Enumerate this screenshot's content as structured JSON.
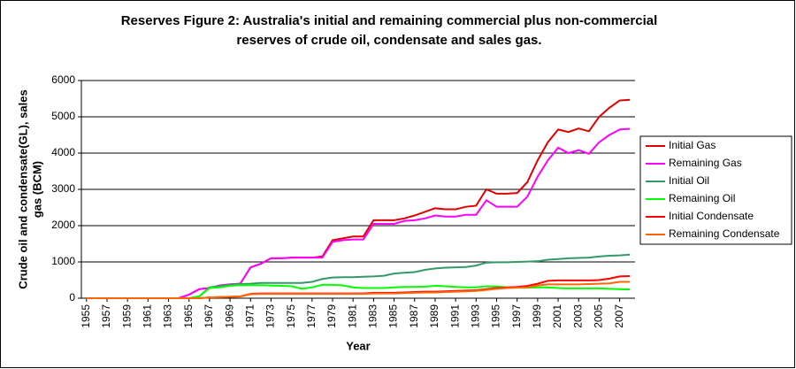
{
  "chart_data": {
    "type": "line",
    "title": [
      "Reserves Figure 2: Australia's initial and remaining commercial plus non-commercial",
      "reserves of crude oil, condensate and sales gas."
    ],
    "x_label": "Year",
    "y_label": [
      "Crude oil and condensate(GL), sales",
      "gas (BCM)"
    ],
    "x": [
      1955,
      1956,
      1957,
      1958,
      1959,
      1960,
      1961,
      1962,
      1963,
      1964,
      1965,
      1966,
      1967,
      1968,
      1969,
      1970,
      1971,
      1972,
      1973,
      1974,
      1975,
      1976,
      1977,
      1978,
      1979,
      1980,
      1981,
      1982,
      1983,
      1984,
      1985,
      1986,
      1987,
      1988,
      1989,
      1990,
      1991,
      1992,
      1993,
      1994,
      1995,
      1996,
      1997,
      1998,
      1999,
      2000,
      2001,
      2002,
      2003,
      2004,
      2005,
      2006,
      2007,
      2008
    ],
    "xlim": [
      1954.5,
      2008.5
    ],
    "xticks": [
      1955,
      1957,
      1959,
      1961,
      1963,
      1965,
      1967,
      1969,
      1971,
      1973,
      1975,
      1977,
      1979,
      1981,
      1983,
      1985,
      1987,
      1989,
      1991,
      1993,
      1995,
      1997,
      1999,
      2001,
      2003,
      2005,
      2007
    ],
    "ylim": [
      0,
      6000
    ],
    "yticks": [
      0,
      1000,
      2000,
      3000,
      4000,
      5000,
      6000
    ],
    "grid": true,
    "legend": "right",
    "series": [
      {
        "name": "Initial Gas",
        "color": "#e00000",
        "values": [
          0,
          0,
          0,
          0,
          0,
          0,
          0,
          0,
          0,
          0,
          100,
          250,
          280,
          350,
          380,
          400,
          850,
          950,
          1100,
          1100,
          1120,
          1120,
          1120,
          1150,
          1600,
          1650,
          1700,
          1700,
          2150,
          2150,
          2150,
          2200,
          2280,
          2380,
          2480,
          2450,
          2450,
          2520,
          2550,
          3000,
          2880,
          2880,
          2900,
          3200,
          3800,
          4300,
          4650,
          4580,
          4680,
          4600,
          5000,
          5250,
          5450,
          5470
        ]
      },
      {
        "name": "Remaining Gas",
        "color": "#ff00ff",
        "values": [
          0,
          0,
          0,
          0,
          0,
          0,
          0,
          0,
          0,
          0,
          100,
          250,
          280,
          350,
          380,
          400,
          850,
          950,
          1100,
          1100,
          1120,
          1120,
          1120,
          1120,
          1550,
          1600,
          1620,
          1620,
          2050,
          2050,
          2050,
          2130,
          2150,
          2200,
          2280,
          2250,
          2250,
          2300,
          2300,
          2700,
          2520,
          2520,
          2520,
          2800,
          3350,
          3800,
          4150,
          4000,
          4080,
          3980,
          4300,
          4500,
          4650,
          4670
        ]
      },
      {
        "name": "Initial Oil",
        "color": "#339966",
        "values": [
          0,
          0,
          0,
          0,
          0,
          0,
          0,
          0,
          0,
          0,
          0,
          50,
          300,
          330,
          370,
          390,
          400,
          420,
          420,
          420,
          420,
          420,
          450,
          530,
          570,
          580,
          580,
          590,
          600,
          620,
          680,
          700,
          720,
          780,
          820,
          840,
          850,
          860,
          900,
          980,
          990,
          990,
          1000,
          1010,
          1020,
          1060,
          1080,
          1100,
          1110,
          1120,
          1150,
          1170,
          1180,
          1200
        ]
      },
      {
        "name": "Remaining Oil",
        "color": "#00ff00",
        "values": [
          0,
          0,
          0,
          0,
          0,
          0,
          0,
          0,
          0,
          0,
          0,
          50,
          280,
          300,
          340,
          360,
          360,
          360,
          350,
          340,
          330,
          260,
          300,
          370,
          370,
          350,
          300,
          280,
          280,
          280,
          300,
          310,
          310,
          320,
          340,
          330,
          310,
          300,
          300,
          330,
          320,
          300,
          300,
          290,
          300,
          300,
          280,
          270,
          270,
          270,
          270,
          260,
          250,
          240
        ]
      },
      {
        "name": "Initial Condensate",
        "color": "#ff0000",
        "values": [
          0,
          0,
          0,
          0,
          0,
          0,
          0,
          0,
          0,
          0,
          0,
          0,
          20,
          30,
          40,
          50,
          120,
          130,
          130,
          130,
          130,
          130,
          130,
          130,
          130,
          130,
          130,
          130,
          150,
          150,
          150,
          160,
          170,
          180,
          180,
          190,
          200,
          210,
          220,
          250,
          280,
          300,
          310,
          340,
          400,
          480,
          490,
          490,
          490,
          490,
          500,
          540,
          600,
          610
        ]
      },
      {
        "name": "Remaining Condensate",
        "color": "#ff6600",
        "values": [
          0,
          0,
          0,
          0,
          0,
          0,
          0,
          0,
          0,
          0,
          0,
          0,
          20,
          30,
          40,
          50,
          110,
          120,
          120,
          120,
          120,
          120,
          120,
          120,
          120,
          120,
          120,
          120,
          130,
          130,
          130,
          140,
          150,
          160,
          160,
          170,
          180,
          190,
          200,
          230,
          260,
          280,
          290,
          300,
          350,
          380,
          380,
          380,
          380,
          390,
          400,
          410,
          450,
          450
        ]
      }
    ]
  }
}
